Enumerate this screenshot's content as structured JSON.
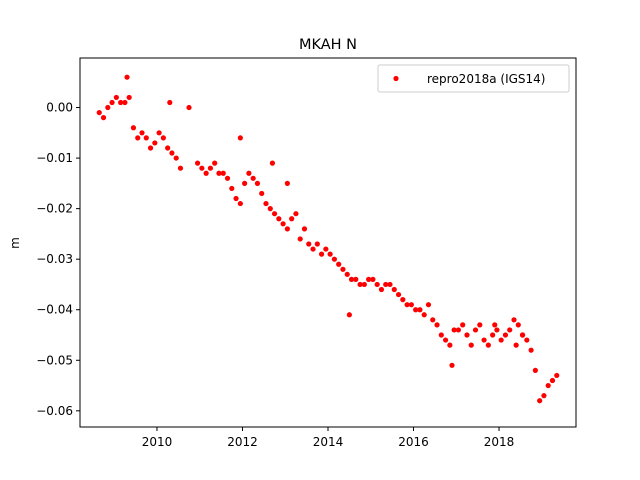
{
  "chart_data": {
    "type": "scatter",
    "title": "MKAH N",
    "xlabel": "",
    "ylabel": "m",
    "xlim": [
      2008.2,
      2019.8
    ],
    "ylim": [
      -0.0632,
      0.0098
    ],
    "xticks": [
      2010,
      2012,
      2014,
      2016,
      2018
    ],
    "xtick_labels": [
      "2010",
      "2012",
      "2014",
      "2016",
      "2018"
    ],
    "yticks": [
      0.0,
      -0.01,
      -0.02,
      -0.03,
      -0.04,
      -0.05,
      -0.06
    ],
    "ytick_labels": [
      "0.00",
      "−0.01",
      "−0.02",
      "−0.03",
      "−0.04",
      "−0.05",
      "−0.06"
    ],
    "grid": false,
    "legend_position": "top-right",
    "series": [
      {
        "name": "repro2018a (IGS14)",
        "color": "#ff0000",
        "marker": "circle",
        "x": [
          2008.65,
          2008.75,
          2008.85,
          2008.95,
          2009.05,
          2009.15,
          2009.25,
          2009.35,
          2009.45,
          2009.55,
          2009.65,
          2009.75,
          2009.85,
          2009.95,
          2010.05,
          2010.15,
          2010.25,
          2010.35,
          2010.45,
          2010.55,
          2010.95,
          2011.05,
          2011.15,
          2011.25,
          2011.35,
          2011.45,
          2011.55,
          2011.65,
          2011.75,
          2011.85,
          2011.95,
          2012.05,
          2012.15,
          2012.25,
          2012.35,
          2012.45,
          2012.55,
          2012.65,
          2012.75,
          2012.85,
          2012.95,
          2013.05,
          2013.15,
          2013.25,
          2013.35,
          2013.45,
          2013.55,
          2013.65,
          2013.75,
          2013.85,
          2013.95,
          2014.05,
          2014.15,
          2014.25,
          2014.35,
          2014.45,
          2014.55,
          2014.65,
          2014.75,
          2014.85,
          2014.95,
          2015.05,
          2015.15,
          2015.25,
          2015.35,
          2015.45,
          2015.55,
          2015.65,
          2015.75,
          2015.85,
          2015.95,
          2016.05,
          2016.15,
          2016.25,
          2016.35,
          2016.45,
          2016.55,
          2016.65,
          2016.75,
          2016.85,
          2016.95,
          2017.05,
          2017.15,
          2017.25,
          2017.35,
          2017.45,
          2017.55,
          2017.65,
          2017.75,
          2017.85,
          2017.95,
          2018.05,
          2018.15,
          2018.25,
          2018.35,
          2018.45,
          2018.55,
          2018.65,
          2018.75,
          2018.85,
          2018.95,
          2019.05,
          2019.15,
          2019.25,
          2019.35,
          2009.3,
          2010.3,
          2010.75,
          2011.95,
          2012.7,
          2013.05,
          2014.5,
          2016.9,
          2017.9,
          2018.4,
          2018.55
        ],
        "y": [
          -0.001,
          -0.002,
          0.0,
          0.001,
          0.002,
          0.001,
          0.001,
          0.002,
          -0.004,
          -0.006,
          -0.005,
          -0.006,
          -0.008,
          -0.007,
          -0.005,
          -0.006,
          -0.008,
          -0.009,
          -0.01,
          -0.012,
          -0.011,
          -0.012,
          -0.013,
          -0.012,
          -0.011,
          -0.013,
          -0.013,
          -0.014,
          -0.016,
          -0.018,
          -0.019,
          -0.015,
          -0.013,
          -0.014,
          -0.015,
          -0.017,
          -0.019,
          -0.02,
          -0.021,
          -0.022,
          -0.023,
          -0.024,
          -0.022,
          -0.021,
          -0.026,
          -0.024,
          -0.027,
          -0.028,
          -0.027,
          -0.029,
          -0.028,
          -0.029,
          -0.03,
          -0.031,
          -0.032,
          -0.033,
          -0.034,
          -0.034,
          -0.035,
          -0.035,
          -0.034,
          -0.034,
          -0.035,
          -0.036,
          -0.035,
          -0.035,
          -0.036,
          -0.037,
          -0.038,
          -0.039,
          -0.039,
          -0.04,
          -0.04,
          -0.041,
          -0.039,
          -0.042,
          -0.043,
          -0.045,
          -0.046,
          -0.047,
          -0.044,
          -0.044,
          -0.043,
          -0.045,
          -0.047,
          -0.044,
          -0.043,
          -0.046,
          -0.047,
          -0.045,
          -0.044,
          -0.046,
          -0.045,
          -0.044,
          -0.042,
          -0.043,
          -0.045,
          -0.046,
          -0.048,
          -0.052,
          -0.058,
          -0.057,
          -0.055,
          -0.054,
          -0.053,
          0.006,
          0.001,
          0.0,
          -0.006,
          -0.011,
          -0.015,
          -0.041,
          -0.051,
          -0.043,
          -0.047,
          -0.045
        ]
      }
    ]
  }
}
